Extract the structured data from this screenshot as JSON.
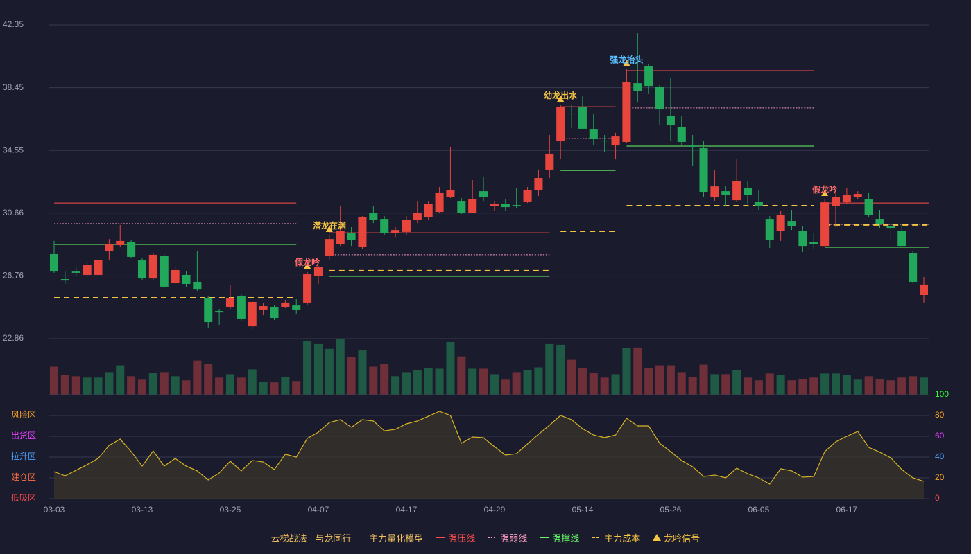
{
  "chart_data": {
    "type": "candlestick",
    "categories": [
      "03-03",
      null,
      null,
      null,
      null,
      null,
      null,
      null,
      "03-13",
      null,
      null,
      null,
      null,
      null,
      null,
      null,
      "03-25",
      null,
      null,
      null,
      null,
      null,
      null,
      null,
      "04-07",
      null,
      null,
      null,
      null,
      null,
      null,
      null,
      "04-17",
      null,
      null,
      null,
      null,
      null,
      null,
      null,
      "04-29",
      null,
      null,
      null,
      null,
      null,
      null,
      null,
      "05-14",
      null,
      null,
      null,
      null,
      null,
      null,
      null,
      "05-26",
      null,
      null,
      null,
      null,
      null,
      null,
      null,
      "06-05",
      null,
      null,
      null,
      null,
      null,
      null,
      null,
      "06-17",
      null,
      null,
      null,
      null,
      null,
      null,
      null
    ],
    "open": [
      28.11,
      26.56,
      27.03,
      26.82,
      26.82,
      28.32,
      28.67,
      28.84,
      27.72,
      26.6,
      28.02,
      26.34,
      26.82,
      26.39,
      25.4,
      24.58,
      24.8,
      25.53,
      23.63,
      24.67,
      24.84,
      24.84,
      24.92,
      25.1,
      26.77,
      27.98,
      28.75,
      29.44,
      28.54,
      30.65,
      30.3,
      29.44,
      29.49,
      30.22,
      30.39,
      30.73,
      31.68,
      31.42,
      30.69,
      32.02,
      31.08,
      31.25,
      31.16,
      31.38,
      32.07,
      33.36,
      35.12,
      36.84,
      37.27,
      35.85,
      35.16,
      34.86,
      35.08,
      38.73,
      39.77,
      38.52,
      36.67,
      36.02,
      34.86,
      34.69,
      31.64,
      32.02,
      31.46,
      32.24,
      31.38,
      30.3,
      29.53,
      30.17,
      29.53,
      28.84,
      28.62,
      31.08,
      31.33,
      31.64,
      31.51,
      30.3,
      29.83,
      29.57,
      28.15,
      25.57
    ],
    "high": [
      28.93,
      27.03,
      27.33,
      27.64,
      27.98,
      29.05,
      29.92,
      28.97,
      27.89,
      28.15,
      28.11,
      27.38,
      27.03,
      28.32,
      25.48,
      24.71,
      26.17,
      25.61,
      25.23,
      25.1,
      24.92,
      25.27,
      25.31,
      26.99,
      27.38,
      29.27,
      31.08,
      29.79,
      30.47,
      31.08,
      30.47,
      29.79,
      30.47,
      31.42,
      31.42,
      32.28,
      34.78,
      31.59,
      32.71,
      32.93,
      31.42,
      31.51,
      32.2,
      32.28,
      33.36,
      35.51,
      37.36,
      37.36,
      37.96,
      36.8,
      35.51,
      35.64,
      39.59,
      41.83,
      39.9,
      38.61,
      39.04,
      36.67,
      35.51,
      35.16,
      33.31,
      32.37,
      34.0,
      32.63,
      32.07,
      30.47,
      30.78,
      30.86,
      29.87,
      29.4,
      31.51,
      31.94,
      32.2,
      32.02,
      31.94,
      30.86,
      30.04,
      30.0,
      28.32,
      26.69
    ],
    "low": [
      26.95,
      26.26,
      26.77,
      26.69,
      26.69,
      27.76,
      28.58,
      27.85,
      26.52,
      26.52,
      26.0,
      26.26,
      26.09,
      25.83,
      23.55,
      23.68,
      24.71,
      23.98,
      23.46,
      24.32,
      24.02,
      24.75,
      24.41,
      24.97,
      26.26,
      27.76,
      28.62,
      28.62,
      28.41,
      30.04,
      29.27,
      29.18,
      29.27,
      30.04,
      30.22,
      30.65,
      31.59,
      30.6,
      30.65,
      31.42,
      30.78,
      30.78,
      30.99,
      31.29,
      31.72,
      32.84,
      34.0,
      35.94,
      35.85,
      34.86,
      34.43,
      34.0,
      35.03,
      37.53,
      38.05,
      36.15,
      35.16,
      34.91,
      33.57,
      31.64,
      31.42,
      31.08,
      31.38,
      31.21,
      30.86,
      28.5,
      28.93,
      29.61,
      28.24,
      28.41,
      28.54,
      29.79,
      31.25,
      31.55,
      30.43,
      29.74,
      29.05,
      28.54,
      26.3,
      25.1
    ],
    "close": [
      27.03,
      26.47,
      26.95,
      27.42,
      27.76,
      28.75,
      28.93,
      27.94,
      26.6,
      28.07,
      26.09,
      27.12,
      26.26,
      25.91,
      23.89,
      24.49,
      25.4,
      24.11,
      25.14,
      24.88,
      24.15,
      25.1,
      24.67,
      26.86,
      27.29,
      29.05,
      29.53,
      29.01,
      30.39,
      30.22,
      29.4,
      29.61,
      30.26,
      30.69,
      31.21,
      31.94,
      32.07,
      30.69,
      31.51,
      31.64,
      31.21,
      31.03,
      31.12,
      32.11,
      32.84,
      34.35,
      37.27,
      36.8,
      35.9,
      35.29,
      35.12,
      35.42,
      38.82,
      38.26,
      38.56,
      37.1,
      36.11,
      35.08,
      34.78,
      31.98,
      32.32,
      31.81,
      32.63,
      31.77,
      31.12,
      29.01,
      30.52,
      29.87,
      28.62,
      28.75,
      31.33,
      31.64,
      31.77,
      31.85,
      30.52,
      30.0,
      29.74,
      28.62,
      26.39,
      26.22
    ],
    "volume": [
      41,
      29,
      27,
      25,
      25,
      33,
      43,
      27,
      22,
      32,
      33,
      27,
      21,
      50,
      45,
      25,
      30,
      25,
      37,
      19,
      18,
      26,
      20,
      79,
      74,
      67,
      81,
      55,
      65,
      41,
      45,
      27,
      33,
      36,
      39,
      38,
      77,
      56,
      38,
      38,
      30,
      22,
      33,
      36,
      40,
      74,
      73,
      51,
      39,
      32,
      25,
      30,
      68,
      69,
      39,
      43,
      43,
      33,
      26,
      44,
      30,
      30,
      36,
      25,
      21,
      31,
      29,
      21,
      23,
      25,
      31,
      31,
      29,
      22,
      27,
      23,
      21,
      25,
      27,
      25
    ],
    "up_color": "#e8453c",
    "down_color": "#22a85a",
    "volume_up_color": "#1f5a45",
    "volume_down_color": "#6e2f38",
    "ylim": [
      22.86,
      42.35
    ],
    "yticks": [
      42.35,
      38.45,
      34.55,
      30.66,
      26.76,
      22.86
    ],
    "grid": true,
    "levels": [
      {
        "name": "强压线",
        "color": "#ff4d4d",
        "style": "solid",
        "segments": [
          {
            "start": 0,
            "end": 22,
            "value": 31.29
          },
          {
            "start": 25,
            "end": 45,
            "value": 29.44
          },
          {
            "start": 46,
            "end": 51,
            "value": 37.27
          },
          {
            "start": 52,
            "end": 69,
            "value": 39.51
          },
          {
            "start": 70,
            "end": 79,
            "value": 31.29
          }
        ]
      },
      {
        "name": "强弱线",
        "color": "#ff9ec4",
        "style": "dotted",
        "segments": [
          {
            "start": 0,
            "end": 22,
            "value": 30.0
          },
          {
            "start": 25,
            "end": 45,
            "value": 28.07
          },
          {
            "start": 46,
            "end": 51,
            "value": 35.29
          },
          {
            "start": 52,
            "end": 69,
            "value": 37.19
          },
          {
            "start": 70,
            "end": 79,
            "value": 29.96
          }
        ]
      },
      {
        "name": "强撑线",
        "color": "#66ff66",
        "style": "solid",
        "segments": [
          {
            "start": 0,
            "end": 22,
            "value": 28.71
          },
          {
            "start": 25,
            "end": 45,
            "value": 26.73
          },
          {
            "start": 46,
            "end": 51,
            "value": 33.31
          },
          {
            "start": 52,
            "end": 69,
            "value": 34.82
          },
          {
            "start": 70,
            "end": 79,
            "value": 28.54
          }
        ]
      },
      {
        "name": "主力成本",
        "color": "#f5c542",
        "style": "dashed",
        "segments": [
          {
            "start": 0,
            "end": 22,
            "value": 25.4
          },
          {
            "start": 25,
            "end": 45,
            "value": 27.08
          },
          {
            "start": 46,
            "end": 51,
            "value": 29.53
          },
          {
            "start": 52,
            "end": 69,
            "value": 31.12
          },
          {
            "start": 70,
            "end": 79,
            "value": 29.92
          }
        ]
      }
    ],
    "signal_name": "龙吟信号",
    "signal_color": "#f5c542",
    "signals": [
      {
        "label": "假龙吟",
        "index": 23,
        "color": "#ff6b6b"
      },
      {
        "label": "潜龙在渊",
        "index": 25,
        "color": "#f5c542"
      },
      {
        "label": "幼龙出水",
        "index": 46,
        "color": "#f5c542"
      },
      {
        "label": "强龙抬头",
        "index": 52,
        "color": "#5bc0ff"
      },
      {
        "label": "假龙吟",
        "index": 70,
        "color": "#ff6b6b"
      }
    ],
    "indicator": {
      "type": "line",
      "color": "#d9b526",
      "fill": "#3a342a",
      "values": [
        26,
        22,
        27.3,
        32.7,
        38.7,
        51.3,
        57.3,
        45.3,
        31.3,
        46,
        31.3,
        38.7,
        31.3,
        26.7,
        18,
        24.7,
        36,
        26.7,
        36.7,
        35.3,
        28,
        42.7,
        40,
        58,
        64,
        73.3,
        76,
        68.7,
        76,
        74.7,
        65.3,
        66.7,
        72,
        74.7,
        79.3,
        84,
        80,
        53.3,
        59.3,
        58.7,
        50,
        42,
        43.3,
        52.7,
        62,
        70.7,
        80,
        76,
        67.3,
        61.3,
        58.7,
        61.3,
        77.3,
        70,
        70,
        53.3,
        45.3,
        36.7,
        30.7,
        21.3,
        22.7,
        20,
        29.3,
        24,
        20,
        14,
        28.7,
        26.7,
        20.7,
        21.3,
        45.3,
        54.7,
        60,
        64.7,
        49.3,
        44.7,
        39.3,
        28,
        20,
        16.7
      ],
      "ylim": [
        0,
        100
      ],
      "yticks": [
        100,
        80,
        60,
        40,
        20,
        0
      ],
      "ytick_colors": [
        "#33ff33",
        "#ffa726",
        "#e040fb",
        "#4da3ff",
        "#ffa726",
        "#ff4d4d"
      ],
      "zones": [
        {
          "label": "风险区",
          "value": 80,
          "color": "#ffa726"
        },
        {
          "label": "出货区",
          "value": 60,
          "color": "#e040fb"
        },
        {
          "label": "拉升区",
          "value": 40,
          "color": "#4da3ff"
        },
        {
          "label": "建仓区",
          "value": 20,
          "color": "#ff7043"
        },
        {
          "label": "低吸区",
          "value": 0,
          "color": "#ff4d4d"
        }
      ]
    },
    "legend_title": "云梯战法 · 与龙同行——主力量化模型",
    "legend_title_color": "#f0c060",
    "legend_position": "bottom"
  }
}
